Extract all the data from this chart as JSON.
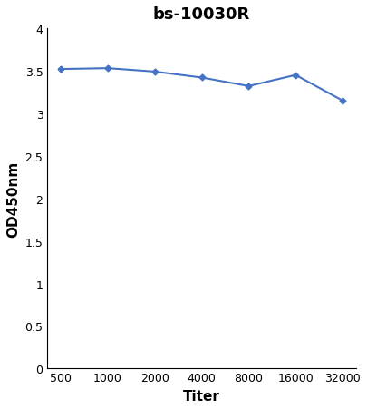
{
  "title": "bs-10030R",
  "xlabel": "Titer",
  "ylabel": "OD450nm",
  "x_values": [
    500,
    1000,
    2000,
    4000,
    8000,
    16000,
    32000
  ],
  "y_values": [
    3.52,
    3.53,
    3.49,
    3.42,
    3.32,
    3.45,
    3.15
  ],
  "line_color": "#4472C4",
  "marker": "D",
  "marker_size": 3.5,
  "line_width": 1.5,
  "ylim": [
    0,
    4.0
  ],
  "yticks": [
    0,
    0.5,
    1,
    1.5,
    2,
    2.5,
    3,
    3.5,
    4
  ],
  "ytick_labels": [
    "0",
    "0.5",
    "1",
    "1.5",
    "2",
    "2.5",
    "3",
    "3.5",
    "4"
  ],
  "xtick_labels": [
    "500",
    "1000",
    "2000",
    "4000",
    "8000",
    "16000",
    "32000"
  ],
  "background_color": "#ffffff",
  "title_fontsize": 13,
  "axis_label_fontsize": 11,
  "tick_fontsize": 9
}
